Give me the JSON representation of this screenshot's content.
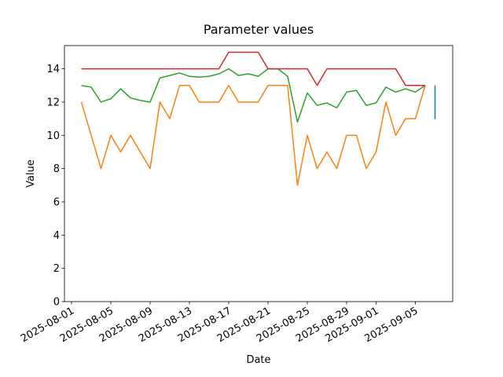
{
  "chart_data": {
    "type": "line",
    "title": "Parameter values",
    "x_label": "Date",
    "y_label": "Value",
    "xlim": [
      "2025-07-31T06:43:00Z",
      "2025-09-08T19:12:00Z"
    ],
    "xticks": [
      "2025-08-01",
      "2025-08-05",
      "2025-08-09",
      "2025-08-13",
      "2025-08-17",
      "2025-08-21",
      "2025-08-25",
      "2025-08-29",
      "2025-09-01",
      "2025-09-05"
    ],
    "ylim": [
      0,
      15.4
    ],
    "yticks": [
      0,
      2,
      4,
      6,
      8,
      10,
      12,
      14
    ],
    "series": [
      {
        "color": "#1f77b4",
        "x": [
          "2025-09-07",
          "2025-09-07",
          "2025-09-07"
        ],
        "values": [
          13,
          11,
          12
        ]
      },
      {
        "color": "#ff7f0e",
        "x": [
          "2025-08-02",
          "2025-08-03",
          "2025-08-04",
          "2025-08-05",
          "2025-08-06",
          "2025-08-07",
          "2025-08-08",
          "2025-08-09",
          "2025-08-10",
          "2025-08-11",
          "2025-08-12",
          "2025-08-13",
          "2025-08-14",
          "2025-08-15",
          "2025-08-16",
          "2025-08-17",
          "2025-08-18",
          "2025-08-19",
          "2025-08-20",
          "2025-08-21",
          "2025-08-22",
          "2025-08-23",
          "2025-08-24",
          "2025-08-25",
          "2025-08-26",
          "2025-08-27",
          "2025-08-28",
          "2025-08-29",
          "2025-08-30",
          "2025-08-31",
          "2025-09-01",
          "2025-09-02",
          "2025-09-03",
          "2025-09-04",
          "2025-09-05",
          "2025-09-06"
        ],
        "values": [
          12,
          10,
          8,
          10,
          9,
          10,
          9,
          8,
          12,
          11,
          13,
          13,
          12,
          12,
          12,
          13,
          12,
          12,
          12,
          13,
          13,
          13,
          7,
          10,
          8,
          9,
          8,
          10,
          10,
          8,
          9,
          12,
          10,
          11,
          11,
          13
        ]
      },
      {
        "color": "#2ca02c",
        "x": [
          "2025-08-02",
          "2025-08-03",
          "2025-08-04",
          "2025-08-05",
          "2025-08-06",
          "2025-08-07",
          "2025-08-08",
          "2025-08-09",
          "2025-08-10",
          "2025-08-11",
          "2025-08-12",
          "2025-08-13",
          "2025-08-14",
          "2025-08-15",
          "2025-08-16",
          "2025-08-17",
          "2025-08-18",
          "2025-08-19",
          "2025-08-20",
          "2025-08-21",
          "2025-08-22",
          "2025-08-23",
          "2025-08-24",
          "2025-08-25",
          "2025-08-26",
          "2025-08-27",
          "2025-08-28",
          "2025-08-29",
          "2025-08-30",
          "2025-08-31",
          "2025-09-01",
          "2025-09-02",
          "2025-09-03",
          "2025-09-04",
          "2025-09-05",
          "2025-09-06"
        ],
        "values": [
          13.0,
          12.9,
          12.0,
          12.2,
          12.8,
          12.25,
          12.1,
          12.0,
          13.45,
          13.6,
          13.75,
          13.55,
          13.5,
          13.55,
          13.7,
          14.0,
          13.6,
          13.7,
          13.55,
          14.0,
          14.0,
          13.55,
          10.8,
          12.55,
          11.8,
          11.95,
          11.65,
          12.6,
          12.7,
          11.8,
          11.95,
          12.9,
          12.6,
          12.8,
          12.6,
          13.0
        ]
      },
      {
        "color": "#d62728",
        "x": [
          "2025-08-02",
          "2025-08-03",
          "2025-08-04",
          "2025-08-05",
          "2025-08-06",
          "2025-08-07",
          "2025-08-08",
          "2025-08-09",
          "2025-08-10",
          "2025-08-11",
          "2025-08-12",
          "2025-08-13",
          "2025-08-14",
          "2025-08-15",
          "2025-08-16",
          "2025-08-17",
          "2025-08-18",
          "2025-08-19",
          "2025-08-20",
          "2025-08-21",
          "2025-08-22",
          "2025-08-23",
          "2025-08-24",
          "2025-08-25",
          "2025-08-26",
          "2025-08-27",
          "2025-08-28",
          "2025-08-29",
          "2025-08-30",
          "2025-08-31",
          "2025-09-01",
          "2025-09-02",
          "2025-09-03",
          "2025-09-04",
          "2025-09-05",
          "2025-09-06"
        ],
        "values": [
          14,
          14,
          14,
          14,
          14,
          14,
          14,
          14,
          14,
          14,
          14,
          14,
          14,
          14,
          14,
          15,
          15,
          15,
          15,
          14,
          14,
          14,
          14,
          14,
          13,
          14,
          14,
          14,
          14,
          14,
          14,
          14,
          14,
          13,
          13,
          13
        ]
      }
    ]
  }
}
